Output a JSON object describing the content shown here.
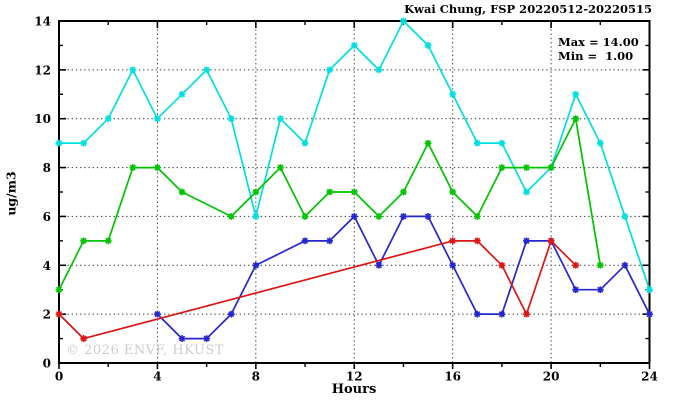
{
  "header": {
    "title": "Kwai Chung, FSP 20220512-20220515"
  },
  "legend": {
    "max_label": "Max = 14.00",
    "min_label": "Min =  1.00"
  },
  "watermark": "© 2026 ENVF, HKUST",
  "chart_data": {
    "type": "line",
    "title": "Kwai Chung, FSP 20220512-20220515",
    "xlabel": "Hours",
    "ylabel": "ug/m3",
    "xlim": [
      0,
      24
    ],
    "ylim": [
      0,
      14
    ],
    "x_major_ticks": [
      0,
      4,
      8,
      12,
      16,
      20,
      24
    ],
    "x_minor_ticks": [
      2,
      6,
      10,
      14,
      18,
      22
    ],
    "y_major_ticks": [
      0,
      2,
      4,
      6,
      8,
      10,
      12,
      14
    ],
    "y_minor_ticks": [
      1,
      3,
      5,
      7,
      9,
      11,
      13
    ],
    "x_tick_labels": [
      "0",
      "4",
      "8",
      "12",
      "16",
      "20",
      "24"
    ],
    "y_tick_labels": [
      "0",
      "2",
      "4",
      "6",
      "8",
      "10",
      "12",
      "14"
    ],
    "grid_x": [
      4,
      8,
      12,
      16,
      20
    ],
    "grid_y": [
      2,
      4,
      6,
      8,
      10,
      12
    ],
    "grid_on": true,
    "stats": {
      "max": 14.0,
      "min": 1.0
    },
    "series": [
      {
        "name": "series-cyan",
        "color": "#00dfdf",
        "points": [
          [
            0,
            9
          ],
          [
            1,
            9
          ],
          [
            2,
            10
          ],
          [
            3,
            12
          ],
          [
            4,
            10
          ],
          [
            5,
            11
          ],
          [
            6,
            12
          ],
          [
            7,
            10
          ],
          [
            8,
            6
          ],
          [
            9,
            10
          ],
          [
            10,
            9
          ],
          [
            11,
            12
          ],
          [
            12,
            13
          ],
          [
            13,
            12
          ],
          [
            14,
            14
          ],
          [
            15,
            13
          ],
          [
            16,
            11
          ],
          [
            17,
            9
          ],
          [
            18,
            9
          ],
          [
            19,
            7
          ],
          [
            20,
            8
          ],
          [
            21,
            11
          ],
          [
            22,
            9
          ],
          [
            23,
            6
          ],
          [
            24,
            3
          ]
        ]
      },
      {
        "name": "series-green",
        "color": "#00c400",
        "points": [
          [
            0,
            3
          ],
          [
            1,
            5
          ],
          [
            2,
            5
          ],
          [
            3,
            8
          ],
          [
            4,
            8
          ],
          [
            5,
            7
          ],
          [
            7,
            6
          ],
          [
            8,
            7
          ],
          [
            9,
            8
          ],
          [
            10,
            6
          ],
          [
            11,
            7
          ],
          [
            12,
            7
          ],
          [
            13,
            6
          ],
          [
            14,
            7
          ],
          [
            15,
            9
          ],
          [
            16,
            7
          ],
          [
            17,
            6
          ],
          [
            18,
            8
          ],
          [
            19,
            8
          ],
          [
            20,
            8
          ],
          [
            21,
            10
          ],
          [
            22,
            4
          ]
        ]
      },
      {
        "name": "series-blue",
        "color": "#2626cf",
        "points": [
          [
            4,
            2
          ],
          [
            5,
            1
          ],
          [
            6,
            1
          ],
          [
            7,
            2
          ],
          [
            8,
            4
          ],
          [
            10,
            5
          ],
          [
            11,
            5
          ],
          [
            12,
            6
          ],
          [
            13,
            4
          ],
          [
            14,
            6
          ],
          [
            15,
            6
          ],
          [
            16,
            4
          ],
          [
            17,
            2
          ],
          [
            18,
            2
          ],
          [
            19,
            5
          ],
          [
            20,
            5
          ],
          [
            21,
            3
          ],
          [
            22,
            3
          ],
          [
            23,
            4
          ],
          [
            24,
            2
          ]
        ]
      },
      {
        "name": "series-red",
        "color": "#df1414",
        "points": [
          [
            0,
            2
          ],
          [
            1,
            1
          ],
          [
            16,
            5
          ],
          [
            17,
            5
          ],
          [
            18,
            4
          ],
          [
            19,
            2
          ],
          [
            20,
            5
          ],
          [
            21,
            4
          ]
        ]
      }
    ]
  }
}
